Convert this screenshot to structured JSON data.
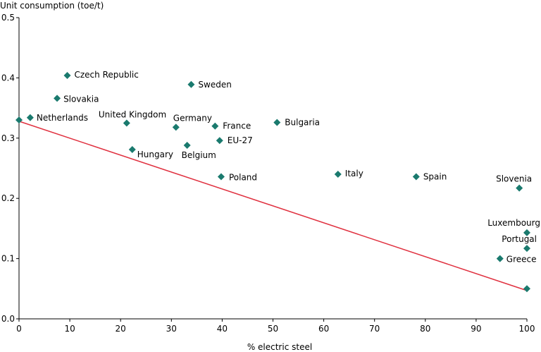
{
  "chart_data": {
    "type": "scatter",
    "title": "",
    "xlabel": "% electric steel",
    "ylabel": "Unit consumption (toe/t)",
    "xlim": [
      0,
      100
    ],
    "ylim": [
      0,
      0.5
    ],
    "x_ticks": [
      0,
      10,
      20,
      30,
      40,
      50,
      60,
      70,
      80,
      90,
      100
    ],
    "y_ticks": [
      0.0,
      0.1,
      0.2,
      0.3,
      0.4,
      0.5
    ],
    "x_tick_labels": [
      "0",
      "10",
      "20",
      "30",
      "40",
      "50",
      "60",
      "70",
      "80",
      "90",
      "100"
    ],
    "y_tick_labels": [
      "0.0",
      "0.1",
      "0.2",
      "0.3",
      "0.4",
      "0.5"
    ],
    "grid": false,
    "legend": "none",
    "marker_color": "#1a7a6e",
    "trendline_color": "#e0303f",
    "points": [
      {
        "label": "",
        "x": 0,
        "y": 0.33
      },
      {
        "label": "Netherlands",
        "x": 2.2,
        "y": 0.334
      },
      {
        "label": "Slovakia",
        "x": 7.5,
        "y": 0.366
      },
      {
        "label": "Czech Republic",
        "x": 9.5,
        "y": 0.404
      },
      {
        "label": "United Kingdom",
        "x": 21.2,
        "y": 0.325
      },
      {
        "label": "Hungary",
        "x": 22.3,
        "y": 0.281
      },
      {
        "label": "Germany",
        "x": 30.9,
        "y": 0.318
      },
      {
        "label": "Belgium",
        "x": 33.1,
        "y": 0.288
      },
      {
        "label": "Sweden",
        "x": 33.9,
        "y": 0.389
      },
      {
        "label": "France",
        "x": 38.6,
        "y": 0.32
      },
      {
        "label": "EU-27",
        "x": 39.5,
        "y": 0.296
      },
      {
        "label": "Poland",
        "x": 39.8,
        "y": 0.236
      },
      {
        "label": "Bulgaria",
        "x": 50.8,
        "y": 0.326
      },
      {
        "label": "Italy",
        "x": 62.8,
        "y": 0.24
      },
      {
        "label": "Spain",
        "x": 78.2,
        "y": 0.236
      },
      {
        "label": "Slovenia",
        "x": 98.5,
        "y": 0.217
      },
      {
        "label": "Luxembourg",
        "x": 100,
        "y": 0.143
      },
      {
        "label": "Portugal",
        "x": 100,
        "y": 0.117
      },
      {
        "label": "Greece",
        "x": 94.7,
        "y": 0.1
      },
      {
        "label": "",
        "x": 100,
        "y": 0.05
      }
    ],
    "trendline": {
      "x": [
        0,
        100
      ],
      "y": [
        0.328,
        0.047
      ]
    }
  }
}
